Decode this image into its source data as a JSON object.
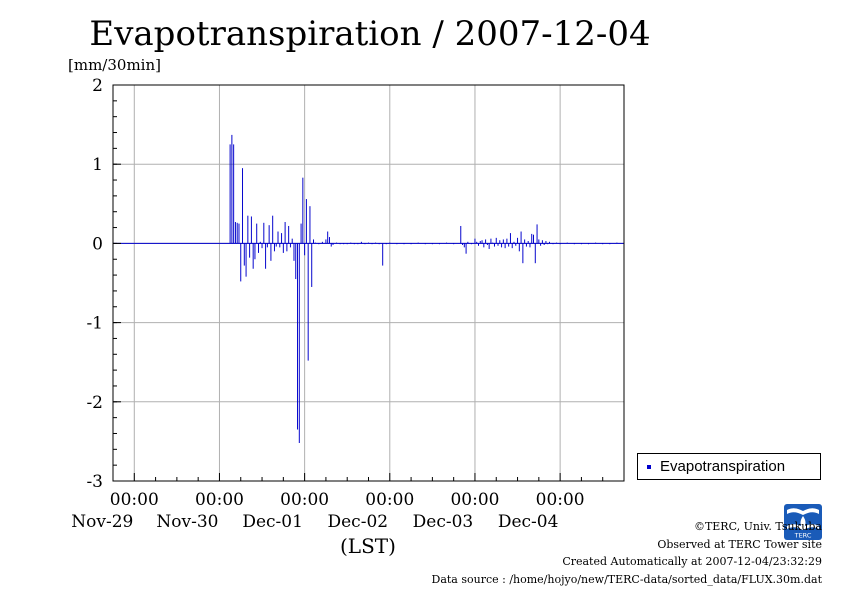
{
  "page": {
    "title": "Evapotranspiration / 2007-12-04",
    "unit": "[mm/30min]",
    "x_axis_title": "(LST)",
    "legend_label": "Evapotranspiration",
    "footer": {
      "line1": "©TERC, Univ. Tsukuba",
      "line2": "Observed at TERC Tower site",
      "line3": "Created Automatically at 2007-12-04/23:32:29",
      "line4": "Data source : /home/hojyo/new/TERC-data/sorted_data/FLUX.30m.dat"
    },
    "logo_text": "TERC"
  },
  "chart_data": {
    "type": "bar",
    "title": "Evapotranspiration / 2007-12-04",
    "ylabel": "[mm/30min]",
    "xlabel": "(LST)",
    "ylim": [
      -3,
      2
    ],
    "y_ticks": [
      "2",
      "1",
      "0",
      "-1",
      "-2",
      "-3"
    ],
    "x_ticks": [
      {
        "time": "00:00",
        "date": "Nov-29"
      },
      {
        "time": "00:00",
        "date": "Nov-30"
      },
      {
        "time": "00:00",
        "date": "Dec-01"
      },
      {
        "time": "00:00",
        "date": "Dec-02"
      },
      {
        "time": "00:00",
        "date": "Dec-03"
      },
      {
        "time": "00:00",
        "date": "Dec-04"
      }
    ],
    "x_unit": "hours since Nov-28 18:00 LST",
    "xlim": [
      0,
      144
    ],
    "grid": true,
    "legend_position": "right",
    "color": "#0000cc",
    "series": [
      {
        "name": "Evapotranspiration",
        "points": [
          [
            33.0,
            1.25
          ],
          [
            33.5,
            1.37
          ],
          [
            34.0,
            1.25
          ],
          [
            34.5,
            0.27
          ],
          [
            35.0,
            0.26
          ],
          [
            35.5,
            0.25
          ],
          [
            36.0,
            -0.48
          ],
          [
            36.5,
            0.95
          ],
          [
            37.0,
            -0.28
          ],
          [
            37.5,
            -0.42
          ],
          [
            38.0,
            0.35
          ],
          [
            38.5,
            -0.18
          ],
          [
            39.0,
            0.34
          ],
          [
            39.5,
            -0.32
          ],
          [
            40.0,
            -0.2
          ],
          [
            40.5,
            0.25
          ],
          [
            41.0,
            -0.12
          ],
          [
            41.5,
            0.02
          ],
          [
            42.0,
            -0.06
          ],
          [
            42.5,
            0.26
          ],
          [
            43.0,
            -0.32
          ],
          [
            43.5,
            -0.05
          ],
          [
            44.0,
            0.23
          ],
          [
            44.5,
            -0.22
          ],
          [
            45.0,
            0.35
          ],
          [
            45.5,
            -0.1
          ],
          [
            46.0,
            -0.04
          ],
          [
            46.5,
            0.15
          ],
          [
            47.0,
            -0.05
          ],
          [
            47.5,
            0.13
          ],
          [
            48.0,
            -0.12
          ],
          [
            48.5,
            0.27
          ],
          [
            49.0,
            -0.1
          ],
          [
            49.5,
            0.22
          ],
          [
            50.0,
            -0.05
          ],
          [
            50.5,
            0.06
          ],
          [
            51.0,
            -0.22
          ],
          [
            51.5,
            -0.45
          ],
          [
            52.0,
            -2.35
          ],
          [
            52.5,
            -2.52
          ],
          [
            53.0,
            0.25
          ],
          [
            53.5,
            0.83
          ],
          [
            54.0,
            -0.15
          ],
          [
            54.5,
            0.56
          ],
          [
            55.0,
            -1.48
          ],
          [
            55.5,
            0.47
          ],
          [
            56.0,
            -0.55
          ],
          [
            56.5,
            0.05
          ],
          [
            57.0,
            0.01
          ],
          [
            58.0,
            0.0
          ],
          [
            59.0,
            0.02
          ],
          [
            60.0,
            0.05
          ],
          [
            60.5,
            0.15
          ],
          [
            61.0,
            0.08
          ],
          [
            61.5,
            -0.04
          ],
          [
            62.0,
            -0.02
          ],
          [
            63.0,
            0.01
          ],
          [
            64.0,
            -0.01
          ],
          [
            65.0,
            0.0
          ],
          [
            66.0,
            -0.01
          ],
          [
            67.0,
            0.01
          ],
          [
            68.0,
            -0.01
          ],
          [
            69.0,
            0.0
          ],
          [
            70.0,
            0.02
          ],
          [
            71.0,
            -0.01
          ],
          [
            72.0,
            0.01
          ],
          [
            73.0,
            0.0
          ],
          [
            74.0,
            0.01
          ],
          [
            75.0,
            -0.01
          ],
          [
            76.0,
            -0.28
          ],
          [
            77.0,
            0.0
          ],
          [
            78.0,
            0.01
          ],
          [
            80.0,
            -0.01
          ],
          [
            82.0,
            0.0
          ],
          [
            84.0,
            0.0
          ],
          [
            86.0,
            0.01
          ],
          [
            88.0,
            0.0
          ],
          [
            90.0,
            -0.01
          ],
          [
            92.0,
            0.0
          ],
          [
            94.0,
            0.01
          ],
          [
            96.0,
            0.0
          ],
          [
            98.0,
            0.22
          ],
          [
            98.5,
            -0.02
          ],
          [
            99.0,
            -0.05
          ],
          [
            99.5,
            -0.13
          ],
          [
            100.0,
            0.02
          ],
          [
            101.0,
            0.0
          ],
          [
            102.0,
            0.06
          ],
          [
            102.5,
            0.02
          ],
          [
            103.0,
            -0.03
          ],
          [
            103.5,
            0.03
          ],
          [
            104.0,
            0.04
          ],
          [
            104.5,
            -0.05
          ],
          [
            105.0,
            0.05
          ],
          [
            105.5,
            -0.02
          ],
          [
            106.0,
            -0.07
          ],
          [
            106.5,
            0.06
          ],
          [
            107.0,
            0.01
          ],
          [
            107.5,
            -0.04
          ],
          [
            108.0,
            0.07
          ],
          [
            108.5,
            -0.03
          ],
          [
            109.0,
            0.04
          ],
          [
            109.5,
            -0.05
          ],
          [
            110.0,
            0.05
          ],
          [
            110.5,
            -0.06
          ],
          [
            111.0,
            0.06
          ],
          [
            111.5,
            -0.04
          ],
          [
            112.0,
            0.13
          ],
          [
            112.5,
            -0.06
          ],
          [
            113.0,
            0.02
          ],
          [
            113.5,
            -0.03
          ],
          [
            114.0,
            0.07
          ],
          [
            114.5,
            -0.1
          ],
          [
            115.0,
            0.15
          ],
          [
            115.5,
            -0.25
          ],
          [
            116.0,
            0.05
          ],
          [
            116.5,
            -0.04
          ],
          [
            117.0,
            0.03
          ],
          [
            117.5,
            -0.05
          ],
          [
            118.0,
            0.12
          ],
          [
            118.5,
            0.11
          ],
          [
            119.0,
            -0.25
          ],
          [
            119.5,
            0.24
          ],
          [
            120.0,
            0.05
          ],
          [
            120.5,
            -0.03
          ],
          [
            121.0,
            0.04
          ],
          [
            121.5,
            -0.02
          ],
          [
            122.0,
            0.03
          ],
          [
            122.5,
            -0.01
          ],
          [
            123.0,
            0.02
          ],
          [
            124.0,
            0.0
          ],
          [
            125.0,
            0.01
          ],
          [
            126.0,
            0.0
          ],
          [
            128.0,
            0.01
          ],
          [
            130.0,
            0.0
          ],
          [
            132.0,
            0.0
          ],
          [
            134.0,
            0.0
          ],
          [
            136.0,
            0.01
          ],
          [
            138.0,
            0.0
          ],
          [
            140.0,
            0.0
          ],
          [
            142.0,
            0.01
          ],
          [
            144.0,
            0.0
          ]
        ]
      }
    ]
  }
}
